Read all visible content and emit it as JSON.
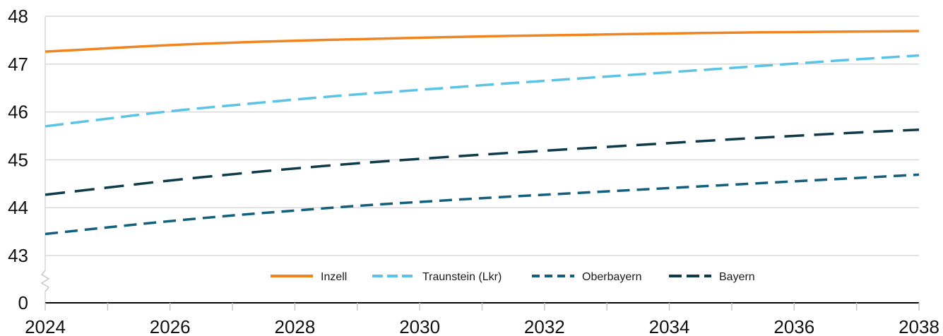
{
  "chart_data": {
    "type": "line",
    "title": "",
    "xlabel": "",
    "ylabel": "",
    "x": [
      2024,
      2025,
      2026,
      2027,
      2028,
      2029,
      2030,
      2031,
      2032,
      2033,
      2034,
      2035,
      2036,
      2037,
      2038
    ],
    "x_ticks": [
      "2024",
      "2026",
      "2028",
      "2030",
      "2032",
      "2034",
      "2036",
      "2038"
    ],
    "y_ticks": [
      "0",
      "43",
      "44",
      "45",
      "46",
      "47",
      "48"
    ],
    "ylim": [
      43,
      48
    ],
    "y_axis_break": true,
    "grid": true,
    "legend_position": "bottom-center",
    "series": [
      {
        "name": "Inzell",
        "color": "#f0841e",
        "style": "solid",
        "values": [
          47.26,
          47.33,
          47.4,
          47.45,
          47.49,
          47.52,
          47.55,
          47.58,
          47.6,
          47.62,
          47.64,
          47.66,
          47.67,
          47.68,
          47.69
        ]
      },
      {
        "name": "Traunstein (Lkr)",
        "color": "#5bc4e6",
        "style": "long-dash",
        "values": [
          45.7,
          45.86,
          46.02,
          46.14,
          46.26,
          46.37,
          46.46,
          46.56,
          46.65,
          46.74,
          46.83,
          46.92,
          47.01,
          47.1,
          47.18
        ]
      },
      {
        "name": "Oberbayern",
        "color": "#13607e",
        "style": "dash",
        "values": [
          43.45,
          43.59,
          43.72,
          43.84,
          43.94,
          44.04,
          44.12,
          44.2,
          44.27,
          44.34,
          44.41,
          44.48,
          44.55,
          44.62,
          44.69
        ]
      },
      {
        "name": "Bayern",
        "color": "#0e3a4a",
        "style": "dash-long",
        "values": [
          44.27,
          44.42,
          44.57,
          44.7,
          44.82,
          44.93,
          45.02,
          45.11,
          45.19,
          45.27,
          45.35,
          45.43,
          45.5,
          45.57,
          45.63
        ]
      }
    ]
  }
}
